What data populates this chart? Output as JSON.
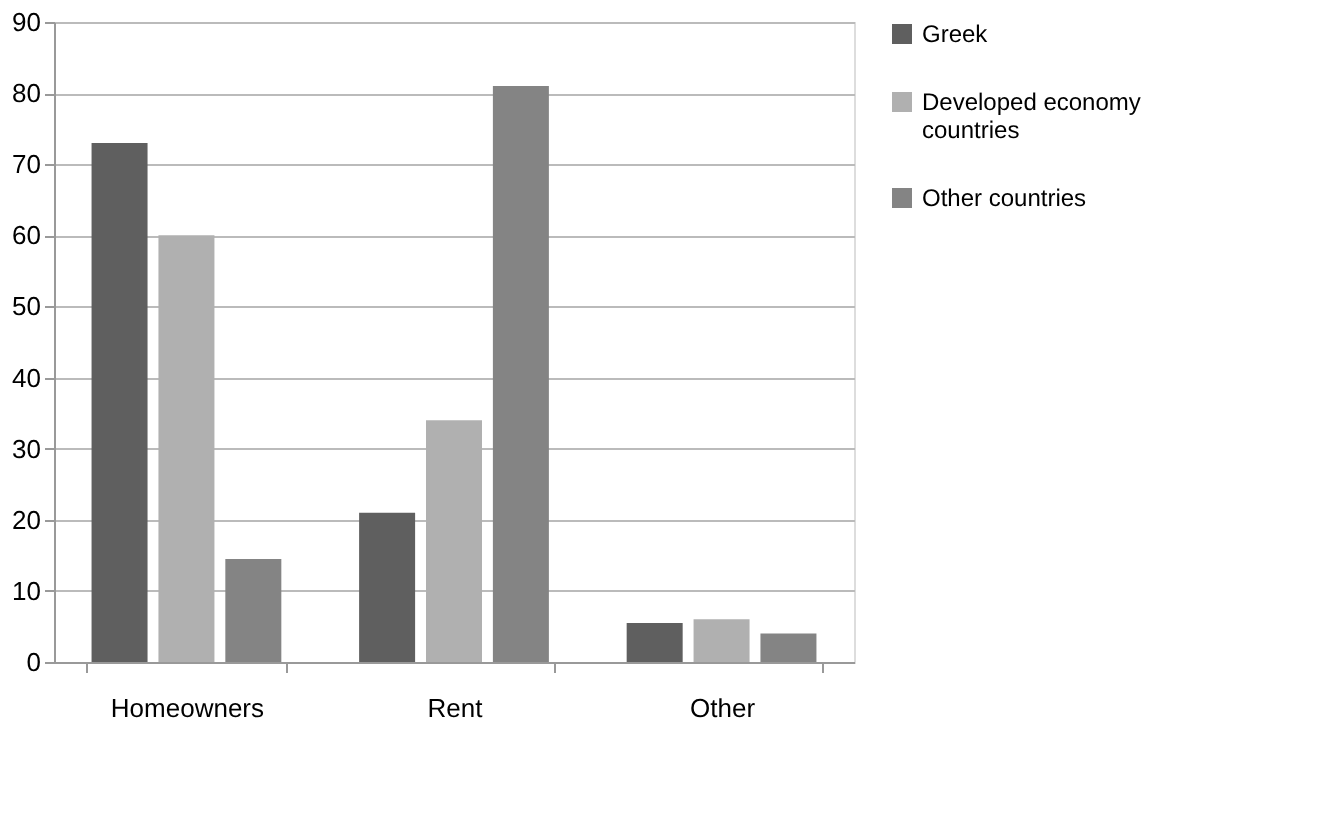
{
  "chart_data": {
    "type": "bar",
    "categories": [
      "Homeowners",
      "Rent",
      "Other"
    ],
    "series": [
      {
        "name": "Greek",
        "color": "#5f5f5f",
        "values": [
          73,
          21,
          5.5
        ]
      },
      {
        "name": "Developed economy countries",
        "color": "#b0b0b0",
        "values": [
          60,
          34,
          6
        ]
      },
      {
        "name": "Other countries",
        "color": "#848484",
        "values": [
          14.5,
          81,
          4
        ]
      }
    ],
    "ylim": [
      0,
      90
    ],
    "yticks": [
      0,
      10,
      20,
      30,
      40,
      50,
      60,
      70,
      80,
      90
    ],
    "grid": "y",
    "legend": "right"
  }
}
